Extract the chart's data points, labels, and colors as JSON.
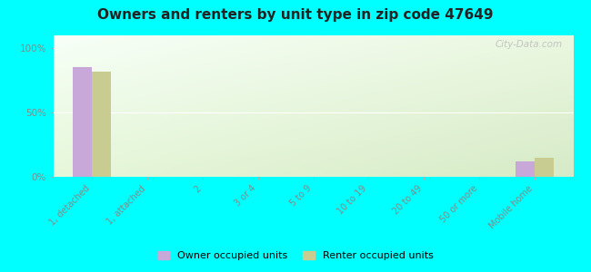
{
  "title": "Owners and renters by unit type in zip code 47649",
  "categories": [
    "1, detached",
    "1, attached",
    "2",
    "3 or 4",
    "5 to 9",
    "10 to 19",
    "20 to 49",
    "50 or more",
    "Mobile home"
  ],
  "owner_values": [
    85,
    0,
    0,
    0,
    0,
    0,
    0,
    0,
    12
  ],
  "renter_values": [
    82,
    0,
    0,
    0,
    0,
    0,
    0,
    0,
    15
  ],
  "owner_color": "#c8a8d8",
  "renter_color": "#c8cc90",
  "bg_color": "#00ffff",
  "yticks": [
    0,
    50,
    100
  ],
  "ylim": [
    0,
    110
  ],
  "owner_label": "Owner occupied units",
  "renter_label": "Renter occupied units",
  "watermark": "City-Data.com",
  "title_fontsize": 11,
  "bar_width": 0.35
}
